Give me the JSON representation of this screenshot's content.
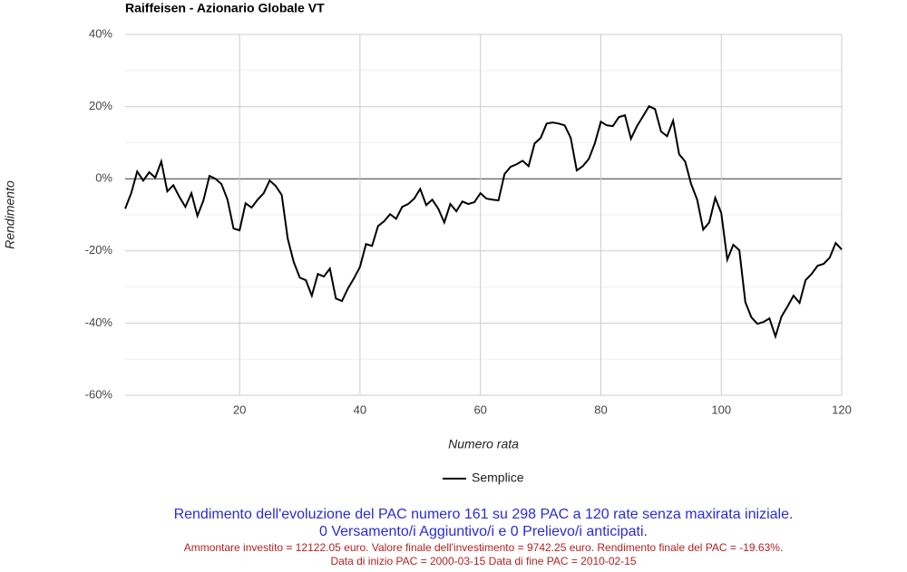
{
  "chart_data": {
    "type": "line",
    "title": "Raiffeisen - Azionario Globale VT",
    "x_label": "Numero rata",
    "y_label": "Rendimento",
    "x": [
      1,
      2,
      3,
      4,
      5,
      6,
      7,
      8,
      9,
      10,
      11,
      12,
      13,
      14,
      15,
      16,
      17,
      18,
      19,
      20,
      21,
      22,
      23,
      24,
      25,
      26,
      27,
      28,
      29,
      30,
      31,
      32,
      33,
      34,
      35,
      36,
      37,
      38,
      39,
      40,
      41,
      42,
      43,
      44,
      45,
      46,
      47,
      48,
      49,
      50,
      51,
      52,
      53,
      54,
      55,
      56,
      57,
      58,
      59,
      60,
      61,
      62,
      63,
      64,
      65,
      66,
      67,
      68,
      69,
      70,
      71,
      72,
      73,
      74,
      75,
      76,
      77,
      78,
      79,
      80,
      81,
      82,
      83,
      84,
      85,
      86,
      87,
      88,
      89,
      90,
      91,
      92,
      93,
      94,
      95,
      96,
      97,
      98,
      99,
      100,
      101,
      102,
      103,
      104,
      105,
      106,
      107,
      108,
      109,
      110,
      111,
      112,
      113,
      114,
      115,
      116,
      117,
      118,
      119,
      120
    ],
    "series": [
      {
        "name": "Semplice",
        "color": "#000000",
        "values": [
          -8.3,
          -4,
          2,
          -0.5,
          1.8,
          0.3,
          4.8,
          -3.5,
          -1.8,
          -5,
          -7.8,
          -4,
          -10.3,
          -6,
          0.8,
          0,
          -1.5,
          -5.8,
          -13.8,
          -14.3,
          -6.8,
          -8,
          -5.8,
          -4,
          -0.5,
          -2,
          -4.5,
          -16.6,
          -23.1,
          -27.4,
          -28.1,
          -32.4,
          -26.4,
          -27.1,
          -24.9,
          -33.2,
          -33.9,
          -30.4,
          -27.6,
          -24.4,
          -18.1,
          -18.6,
          -13.1,
          -11.8,
          -9.8,
          -11.1,
          -7.8,
          -7,
          -5.5,
          -2.8,
          -7.3,
          -5.8,
          -8.3,
          -12.1,
          -7,
          -9,
          -6.3,
          -7,
          -6.5,
          -4,
          -5.5,
          -5.8,
          -6,
          1.3,
          3.3,
          4,
          5,
          3.5,
          9.8,
          11.3,
          15.3,
          15.6,
          15.3,
          14.8,
          11.3,
          2.3,
          3.5,
          5.5,
          9.8,
          15.8,
          14.8,
          14.6,
          17.1,
          17.6,
          11.1,
          14.6,
          17.3,
          20.1,
          19.3,
          13.1,
          11.8,
          16.1,
          6.8,
          4.8,
          -1.5,
          -5.8,
          -14.1,
          -12.1,
          -5.3,
          -9.5,
          -22.4,
          -18.3,
          -19.8,
          -34.2,
          -38.4,
          -40.2,
          -39.7,
          -38.7,
          -43.7,
          -38.2,
          -35.4,
          -32.4,
          -34.4,
          -28.1,
          -26.4,
          -24.1,
          -23.6,
          -21.9,
          -17.8,
          -19.6
        ]
      }
    ],
    "xlim": [
      1,
      120
    ],
    "xticks": [
      20,
      40,
      60,
      80,
      100,
      120
    ],
    "ylim": [
      -60,
      40
    ],
    "yticks": [
      {
        "value": -60,
        "label": "-60%"
      },
      {
        "value": -40,
        "label": "-40%"
      },
      {
        "value": -20,
        "label": "-20%"
      },
      {
        "value": 0,
        "label": "0%"
      },
      {
        "value": 20,
        "label": "20%"
      },
      {
        "value": 40,
        "label": "40%"
      }
    ],
    "yminorticks": [
      -50,
      -30,
      -10,
      10,
      30
    ],
    "grid": true,
    "legend": "bottom",
    "notes": [
      {
        "text": "Rendimento dell'evoluzione del PAC numero 161 su 298 PAC a 120 rate senza maxirata iniziale.",
        "color": "#2b2bd9"
      },
      {
        "text": "0 Versamento/i Aggiuntivo/i e 0 Prelievo/i anticipati.",
        "color": "#2b2bd9"
      },
      {
        "text": "Ammontare investito = 12122.05 euro. Valore finale dell'investimento = 9742.25 euro. Rendimento finale del PAC = -19.63%.",
        "color": "#b22222"
      },
      {
        "text": "Data di inizio PAC = 2000-03-15 Data di fine PAC = 2010-02-15",
        "color": "#b22222"
      }
    ]
  }
}
